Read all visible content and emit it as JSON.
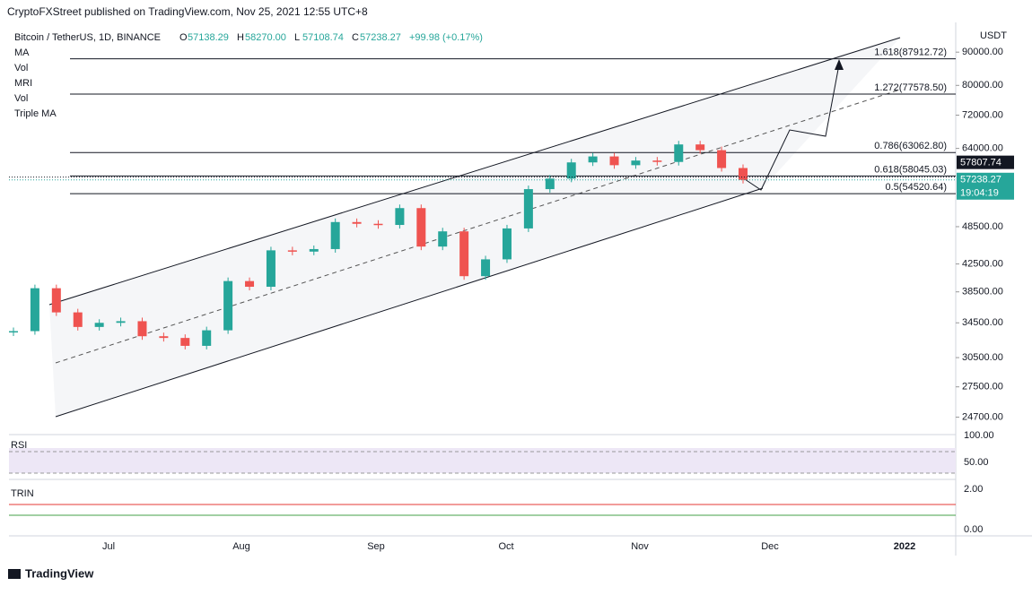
{
  "header": {
    "publisher": "CryptoFXStreet published on TradingView.com, Nov 25, 2021 12:55 UTC+8"
  },
  "chart_data": {
    "type": "candlestick",
    "symbol": "Bitcoin / TetherUS, 1D, BINANCE",
    "ohlc": [
      {
        "key": "O",
        "text": "57138.29"
      },
      {
        "key": "H",
        "text": "58270.00"
      },
      {
        "key": "L",
        "text": "57108.74"
      },
      {
        "key": "C",
        "text": "57238.27"
      }
    ],
    "change": "+99.98 (+0.17%)",
    "indicators": [
      "MA",
      "Vol",
      "MRI",
      "Vol",
      "Triple MA"
    ],
    "unit": "USDT",
    "log_scale": true,
    "ylim": [
      23000,
      100000
    ],
    "yticks": [
      {
        "value": 90000,
        "label": "90000.00"
      },
      {
        "value": 80000,
        "label": "80000.00"
      },
      {
        "value": 72000,
        "label": "72000.00"
      },
      {
        "value": 64000,
        "label": "64000.00"
      },
      {
        "value": 48500,
        "label": "48500.00"
      },
      {
        "value": 42500,
        "label": "42500.00"
      },
      {
        "value": 38500,
        "label": "38500.00"
      },
      {
        "value": 34500,
        "label": "34500.00"
      },
      {
        "value": 30500,
        "label": "30500.00"
      },
      {
        "value": 27500,
        "label": "27500.00"
      },
      {
        "value": 24700,
        "label": "24700.00"
      }
    ],
    "fib_levels": [
      {
        "value": 87912.72,
        "label": "1.618(87912.72)"
      },
      {
        "value": 77578.5,
        "label": "1.272(77578.50)"
      },
      {
        "value": 63062.8,
        "label": "0.786(63062.80)"
      },
      {
        "value": 58045.03,
        "label": "0.618(58045.03)"
      },
      {
        "value": 54520.64,
        "label": "0.5(54520.64)"
      }
    ],
    "price_tags": [
      {
        "value": 57807.74,
        "label": "57807.74",
        "color": "#131722"
      },
      {
        "value": 57238.27,
        "label": "57238.27",
        "color": "#26a69a",
        "countdown": "19:04:19"
      }
    ],
    "categories": [
      "Jul",
      "Aug",
      "Sep",
      "Oct",
      "Nov",
      "Dec",
      "2022"
    ],
    "close": [
      33500,
      39000,
      35800,
      34000,
      34500,
      34700,
      32900,
      32700,
      31800,
      33600,
      40000,
      39200,
      44600,
      44400,
      44800,
      49300,
      49000,
      48800,
      51800,
      45200,
      47700,
      40700,
      43200,
      48200,
      55400,
      57500,
      60900,
      62200,
      60300,
      61300,
      61000,
      64900,
      63600,
      59700,
      57238.27
    ],
    "rsi": {
      "label": "RSI",
      "yticks": [
        {
          "value": 100,
          "label": "100.00"
        },
        {
          "value": 50,
          "label": "50.00"
        }
      ]
    },
    "trin": {
      "label": "TRIN",
      "yticks": [
        {
          "value": 2,
          "label": "2.00"
        },
        {
          "value": 0,
          "label": "0.00"
        }
      ]
    }
  },
  "footer": {
    "brand": "TradingView"
  }
}
